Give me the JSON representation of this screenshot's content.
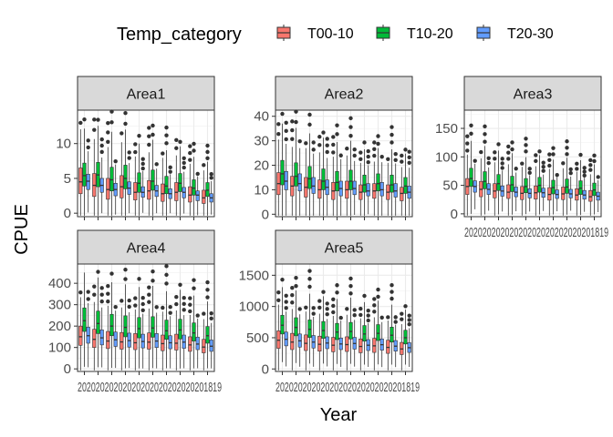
{
  "chart_data": {
    "type": "boxplot",
    "xlabel": "Year",
    "ylabel": "CPUE",
    "x_tick_text": "20202020202020202020202020201819",
    "legend": {
      "title": "Temp_category",
      "position": "top",
      "entries": [
        {
          "name": "T00-10",
          "color": "#F8766D"
        },
        {
          "name": "T10-20",
          "color": "#00BA38"
        },
        {
          "name": "T20-30",
          "color": "#619CFF"
        }
      ]
    },
    "n_years": 10,
    "panels": [
      {
        "strip": "Area1",
        "ylim": [
          -0.5,
          14.8
        ],
        "yticks": [
          0,
          5,
          10
        ],
        "boxes": {
          "T00-10": [
            [
              2.8,
              4.5,
              6.5
            ],
            [
              2.4,
              4.0,
              5.7
            ],
            [
              2.0,
              3.4,
              5.0
            ],
            [
              2.2,
              3.8,
              5.4
            ],
            [
              1.9,
              3.0,
              4.4
            ],
            [
              2.0,
              3.2,
              4.7
            ],
            [
              1.7,
              2.8,
              4.2
            ],
            [
              1.8,
              3.0,
              4.4
            ],
            [
              1.6,
              2.6,
              3.8
            ],
            [
              1.4,
              2.2,
              3.3
            ]
          ],
          "T10-20": [
            [
              3.9,
              5.4,
              7.2
            ],
            [
              3.8,
              5.5,
              7.3
            ],
            [
              3.2,
              4.8,
              6.6
            ],
            [
              3.5,
              5.0,
              6.9
            ],
            [
              3.0,
              4.3,
              5.8
            ],
            [
              3.3,
              4.6,
              6.2
            ],
            [
              2.8,
              3.9,
              5.3
            ],
            [
              3.1,
              4.3,
              5.7
            ],
            [
              2.6,
              3.6,
              4.8
            ],
            [
              2.4,
              3.3,
              4.4
            ]
          ],
          "T20-30": [
            [
              3.4,
              4.6,
              5.6
            ],
            [
              3.0,
              4.0,
              5.0
            ],
            [
              2.5,
              3.4,
              4.3
            ],
            [
              2.7,
              3.6,
              4.5
            ],
            [
              2.3,
              3.0,
              3.8
            ],
            [
              2.4,
              3.2,
              4.0
            ],
            [
              2.1,
              2.8,
              3.5
            ],
            [
              2.2,
              3.0,
              3.7
            ],
            [
              1.8,
              2.6,
              3.2
            ],
            [
              1.6,
              2.2,
              2.8
            ]
          ]
        }
      },
      {
        "strip": "Area2",
        "ylim": [
          -1.0,
          42.5
        ],
        "yticks": [
          0,
          10,
          20,
          30,
          40
        ],
        "boxes": {
          "T00-10": [
            [
              8.0,
              12.5,
              17.0
            ],
            [
              7.5,
              11.5,
              15.5
            ],
            [
              7.0,
              11.0,
              15.0
            ],
            [
              6.5,
              10.0,
              14.0
            ],
            [
              6.0,
              9.5,
              13.0
            ],
            [
              6.5,
              10.0,
              13.5
            ],
            [
              6.0,
              9.0,
              12.0
            ],
            [
              6.5,
              9.5,
              12.5
            ],
            [
              6.0,
              9.0,
              12.0
            ],
            [
              5.5,
              8.5,
              11.0
            ]
          ],
          "T10-20": [
            [
              12.0,
              16.5,
              22.0
            ],
            [
              11.5,
              15.5,
              21.0
            ],
            [
              10.5,
              14.5,
              19.5
            ],
            [
              10.0,
              13.5,
              18.5
            ],
            [
              9.5,
              13.0,
              17.5
            ],
            [
              10.0,
              13.5,
              18.0
            ],
            [
              9.0,
              12.0,
              16.0
            ],
            [
              9.5,
              12.5,
              16.5
            ],
            [
              9.0,
              12.0,
              16.0
            ],
            [
              8.5,
              11.5,
              15.0
            ]
          ],
          "T20-30": [
            [
              10.0,
              13.5,
              17.5
            ],
            [
              9.5,
              12.5,
              16.5
            ],
            [
              8.5,
              11.5,
              15.0
            ],
            [
              8.0,
              11.0,
              14.0
            ],
            [
              7.5,
              10.5,
              13.5
            ],
            [
              8.0,
              10.5,
              13.5
            ],
            [
              7.5,
              9.5,
              12.5
            ],
            [
              7.5,
              10.0,
              13.0
            ],
            [
              7.0,
              9.5,
              12.5
            ],
            [
              6.5,
              9.0,
              11.5
            ]
          ]
        }
      },
      {
        "strip": "Area3",
        "ylim": [
          -5,
          182
        ],
        "yticks": [
          0,
          50,
          100,
          150
        ],
        "boxes": {
          "T00-10": [
            [
              34,
              48,
              62
            ],
            [
              30,
              43,
              57
            ],
            [
              28,
              40,
              53
            ],
            [
              27,
              38,
              51
            ],
            [
              25,
              36,
              48
            ],
            [
              26,
              37,
              49
            ],
            [
              24,
              34,
              46
            ],
            [
              25,
              35,
              47
            ],
            [
              24,
              33,
              44
            ],
            [
              22,
              30,
              41
            ]
          ],
          "T10-20": [
            [
              48,
              62,
              80
            ],
            [
              44,
              57,
              74
            ],
            [
              41,
              53,
              69
            ],
            [
              39,
              51,
              66
            ],
            [
              37,
              48,
              62
            ],
            [
              38,
              50,
              64
            ],
            [
              35,
              46,
              59
            ],
            [
              36,
              47,
              61
            ],
            [
              34,
              45,
              58
            ],
            [
              32,
              42,
              54
            ]
          ],
          "T20-30": [
            [
              38,
              48,
              58
            ],
            [
              34,
              43,
              53
            ],
            [
              31,
              40,
              49
            ],
            [
              30,
              38,
              47
            ],
            [
              28,
              36,
              44
            ],
            [
              29,
              37,
              45
            ],
            [
              27,
              34,
              42
            ],
            [
              28,
              35,
              43
            ],
            [
              26,
              33,
              41
            ],
            [
              24,
              31,
              38
            ]
          ]
        }
      },
      {
        "strip": "Area4",
        "ylim": [
          -12,
          490
        ],
        "yticks": [
          0,
          100,
          200,
          300,
          400
        ],
        "boxes": {
          "T00-10": [
            [
              110,
              150,
              200
            ],
            [
              100,
              138,
              185
            ],
            [
              95,
              130,
              175
            ],
            [
              92,
              126,
              170
            ],
            [
              90,
              122,
              165
            ],
            [
              92,
              125,
              168
            ],
            [
              85,
              118,
              158
            ],
            [
              88,
              120,
              162
            ],
            [
              82,
              112,
              150
            ],
            [
              75,
              102,
              138
            ]
          ],
          "T10-20": [
            [
              175,
              225,
              285
            ],
            [
              165,
              212,
              270
            ],
            [
              155,
              200,
              255
            ],
            [
              150,
              194,
              248
            ],
            [
              145,
              188,
              240
            ],
            [
              148,
              191,
              244
            ],
            [
              138,
              178,
              228
            ],
            [
              140,
              182,
              232
            ],
            [
              130,
              168,
              215
            ],
            [
              120,
              155,
              198
            ]
          ],
          "T20-30": [
            [
              120,
              155,
              195
            ],
            [
              112,
              145,
              182
            ],
            [
              105,
              136,
              172
            ],
            [
              102,
              132,
              167
            ],
            [
              98,
              128,
              162
            ],
            [
              100,
              130,
              165
            ],
            [
              94,
              122,
              155
            ],
            [
              96,
              125,
              158
            ],
            [
              90,
              116,
              148
            ],
            [
              82,
              106,
              135
            ]
          ]
        }
      },
      {
        "strip": "Area5",
        "ylim": [
          -40,
          1680
        ],
        "yticks": [
          0,
          500,
          1000,
          1500
        ],
        "boxes": {
          "T00-10": [
            [
              330,
              460,
              610
            ],
            [
              310,
              430,
              570
            ],
            [
              295,
              410,
              545
            ],
            [
              285,
              395,
              525
            ],
            [
              275,
              380,
              505
            ],
            [
              280,
              390,
              515
            ],
            [
              260,
              360,
              480
            ],
            [
              265,
              370,
              490
            ],
            [
              250,
              345,
              460
            ],
            [
              230,
              320,
              425
            ]
          ],
          "T10-20": [
            [
              560,
              700,
              860
            ],
            [
              530,
              665,
              820
            ],
            [
              505,
              635,
              785
            ],
            [
              490,
              615,
              760
            ],
            [
              470,
              590,
              730
            ],
            [
              480,
              600,
              745
            ],
            [
              445,
              560,
              695
            ],
            [
              455,
              570,
              710
            ],
            [
              430,
              540,
              670
            ],
            [
              400,
              500,
              620
            ]
          ],
          "T20-30": [
            [
              370,
              475,
              590
            ],
            [
              350,
              450,
              560
            ],
            [
              335,
              430,
              535
            ],
            [
              325,
              415,
              515
            ],
            [
              310,
              400,
              495
            ],
            [
              318,
              408,
              505
            ],
            [
              295,
              380,
              470
            ],
            [
              300,
              388,
              480
            ],
            [
              285,
              365,
              455
            ],
            [
              265,
              340,
              420
            ]
          ]
        }
      }
    ]
  }
}
